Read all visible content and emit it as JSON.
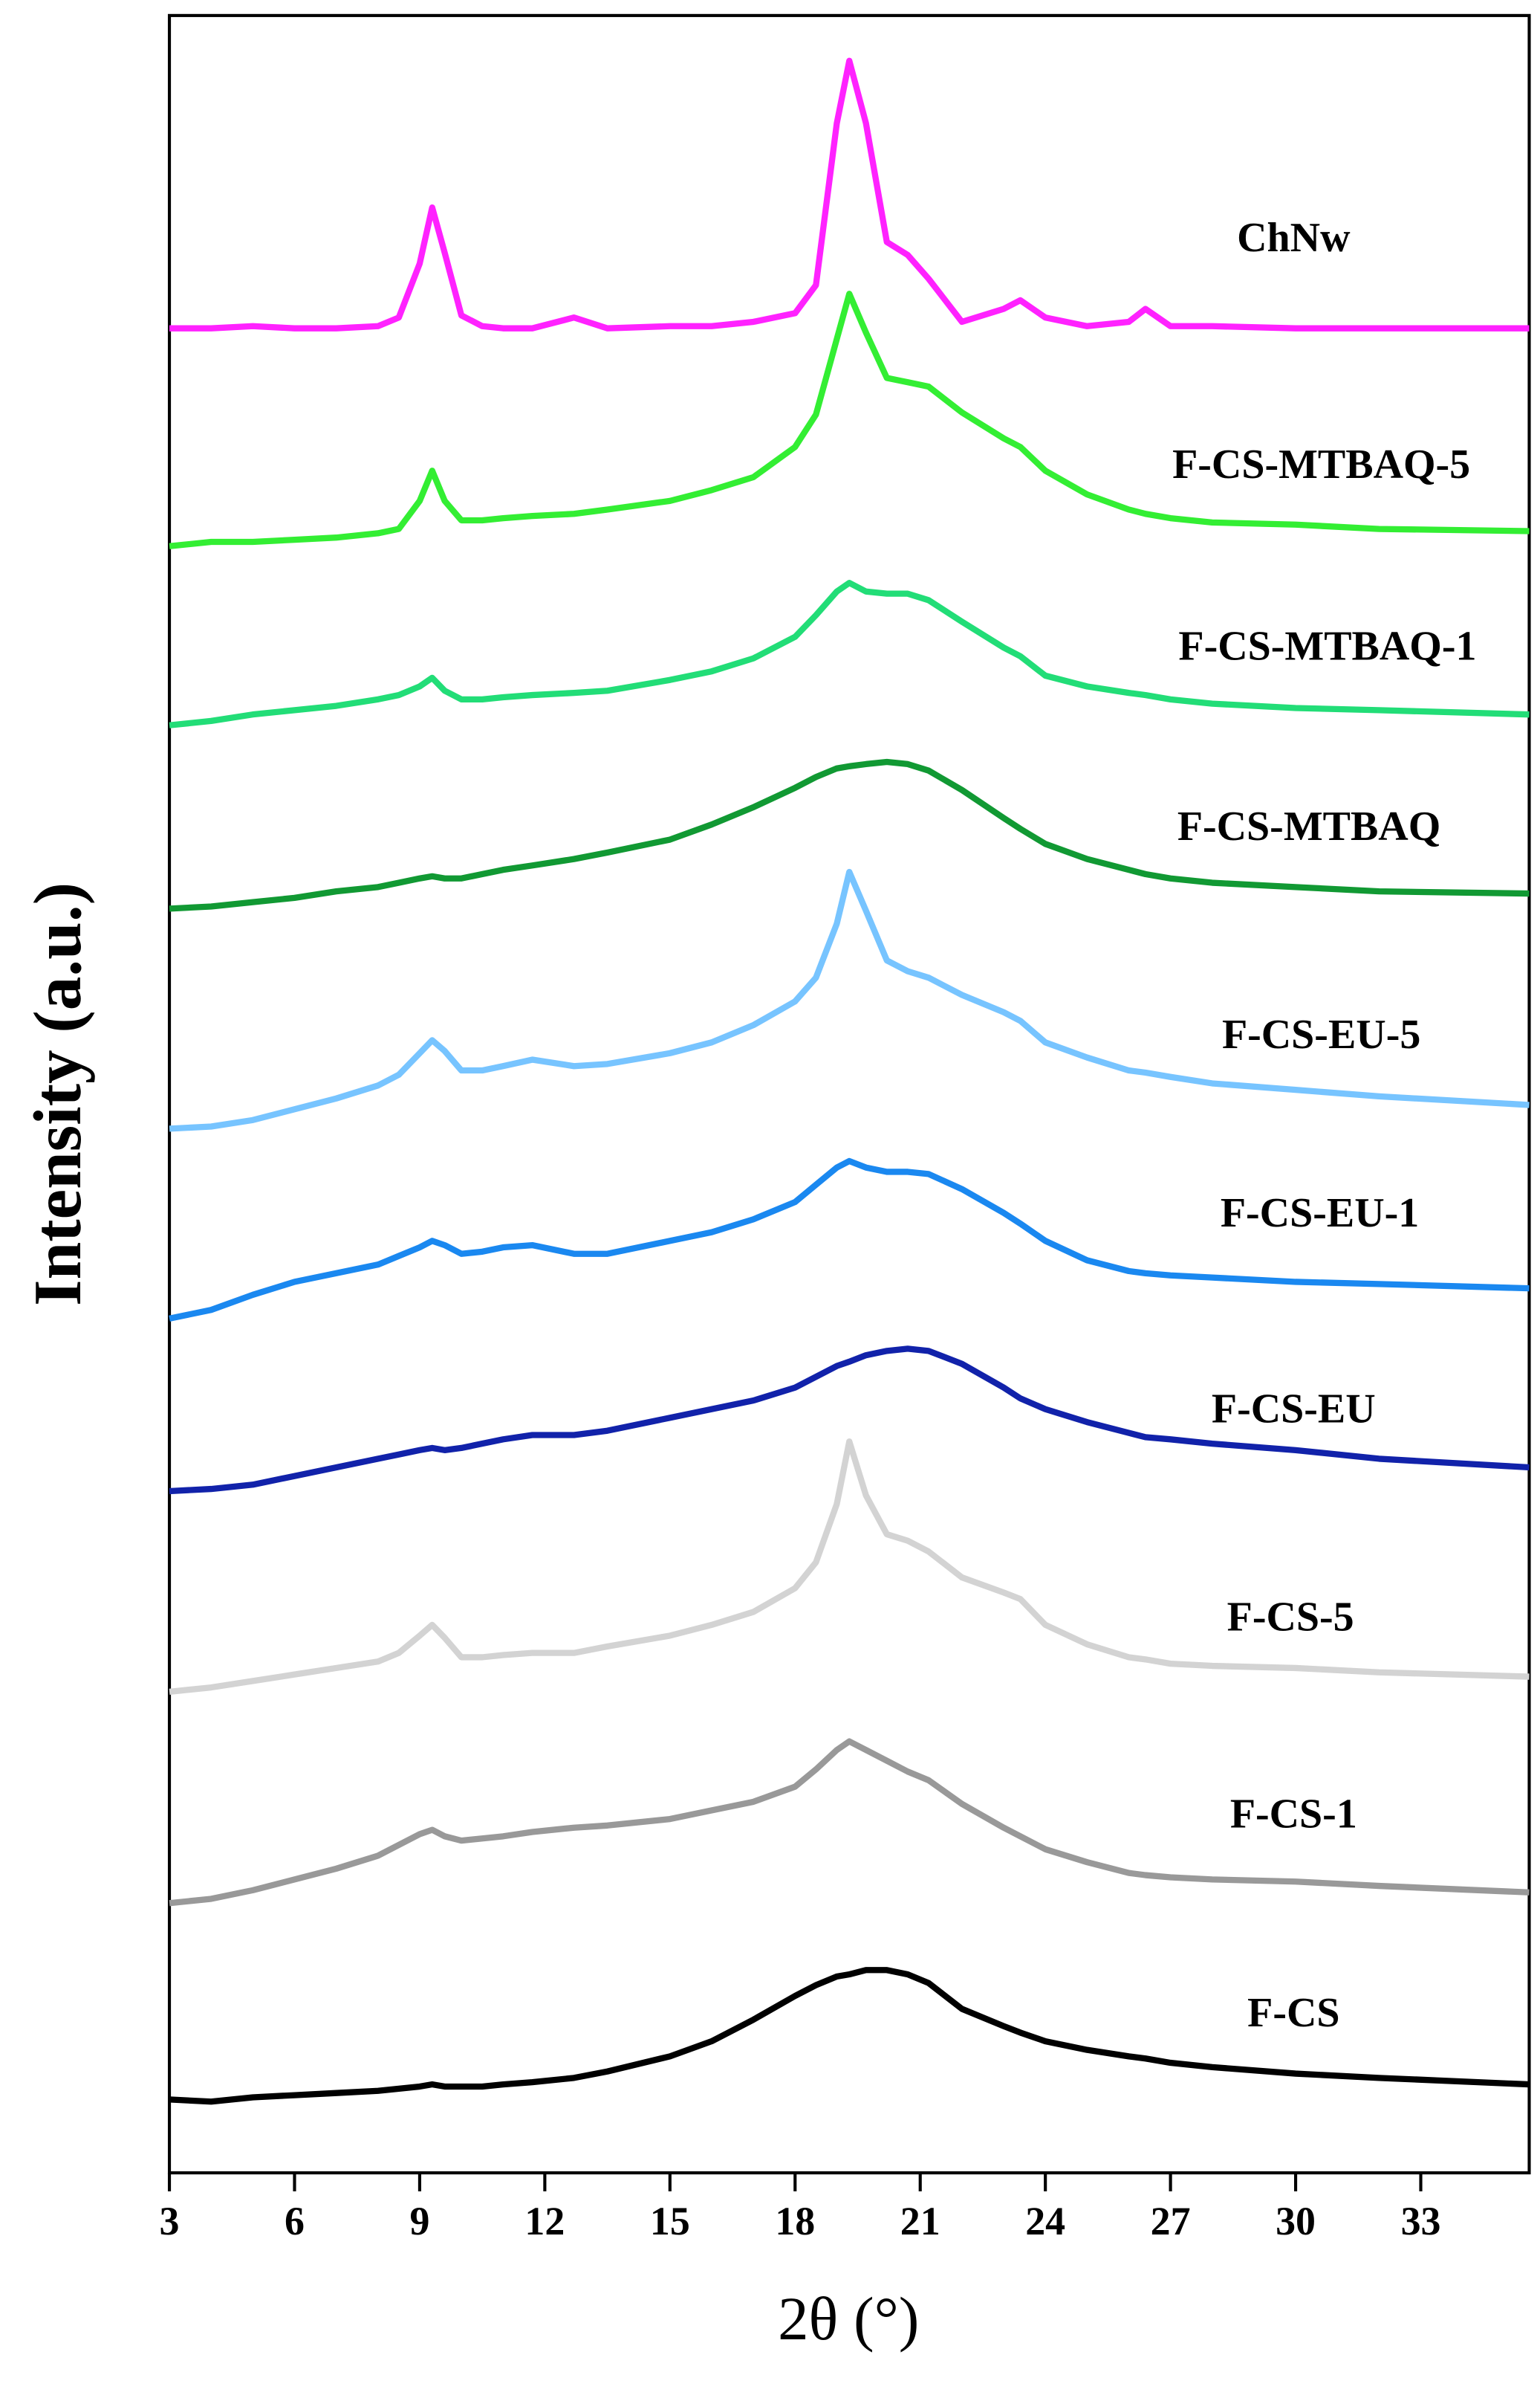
{
  "chart_data": {
    "type": "line",
    "x_label": "2θ (°)",
    "y_label": "Intensity (a.u.)",
    "xlim": [
      3,
      35.6
    ],
    "ylim": [
      0,
      100
    ],
    "xticks": [
      3,
      6,
      9,
      12,
      15,
      18,
      21,
      24,
      27,
      30,
      33
    ],
    "x": [
      3,
      4,
      5,
      6,
      7,
      8,
      8.5,
      9,
      9.3,
      9.6,
      10,
      10.5,
      11,
      11.7,
      12.7,
      13.5,
      15,
      16,
      17,
      18,
      18.5,
      19,
      19.3,
      19.7,
      20.2,
      20.7,
      21.2,
      22,
      23,
      23.4,
      24,
      25,
      26,
      26.4,
      27,
      28,
      30,
      32,
      35.6
    ],
    "series": [
      {
        "name": "ChNw",
        "color": "#ff22ff",
        "values": [
          85.5,
          85.5,
          85.6,
          85.5,
          85.5,
          85.6,
          86.0,
          88.5,
          91.1,
          89,
          86.1,
          85.6,
          85.5,
          85.5,
          86.0,
          85.5,
          85.6,
          85.6,
          85.8,
          86.2,
          87.5,
          95,
          97.9,
          95,
          89.5,
          88.9,
          87.8,
          85.8,
          86.4,
          86.8,
          86,
          85.6,
          85.8,
          86.4,
          85.6,
          85.6,
          85.5,
          85.5,
          85.5
        ]
      },
      {
        "name": "F-CS-MTBAQ-5",
        "color": "#33ee33",
        "values": [
          75.4,
          75.6,
          75.6,
          75.7,
          75.8,
          76.0,
          76.2,
          77.5,
          78.9,
          77.5,
          76.6,
          76.6,
          76.7,
          76.8,
          76.9,
          77.1,
          77.5,
          78.0,
          78.6,
          80.0,
          81.5,
          85.0,
          87.1,
          85.3,
          83.2,
          83.0,
          82.8,
          81.6,
          80.4,
          80.0,
          78.9,
          77.8,
          77.1,
          76.9,
          76.7,
          76.5,
          76.4,
          76.2,
          76.1
        ]
      },
      {
        "name": "F-CS-MTBAQ-1",
        "color": "#22dd77",
        "values": [
          67.1,
          67.3,
          67.6,
          67.8,
          68.0,
          68.3,
          68.5,
          68.9,
          69.3,
          68.7,
          68.3,
          68.3,
          68.4,
          68.5,
          68.6,
          68.7,
          69.2,
          69.6,
          70.2,
          71.2,
          72.2,
          73.3,
          73.7,
          73.3,
          73.2,
          73.2,
          72.9,
          71.9,
          70.7,
          70.3,
          69.4,
          68.9,
          68.6,
          68.5,
          68.3,
          68.1,
          67.9,
          67.8,
          67.6
        ]
      },
      {
        "name": "F-CS-MTBAQ",
        "color": "#119933",
        "values": [
          58.6,
          58.7,
          58.9,
          59.1,
          59.4,
          59.6,
          59.8,
          60.0,
          60.1,
          60.0,
          60.0,
          60.2,
          60.4,
          60.6,
          60.9,
          61.2,
          61.8,
          62.5,
          63.3,
          64.2,
          64.7,
          65.1,
          65.2,
          65.3,
          65.4,
          65.3,
          65.0,
          64.1,
          62.8,
          62.3,
          61.6,
          60.9,
          60.4,
          60.2,
          60.0,
          59.8,
          59.6,
          59.4,
          59.3
        ]
      },
      {
        "name": "F-CS-EU-5",
        "color": "#77c4ff",
        "values": [
          48.4,
          48.5,
          48.8,
          49.3,
          49.8,
          50.4,
          50.9,
          51.9,
          52.5,
          52.0,
          51.1,
          51.1,
          51.3,
          51.6,
          51.3,
          51.4,
          51.9,
          52.4,
          53.2,
          54.3,
          55.4,
          57.9,
          60.3,
          58.5,
          56.2,
          55.7,
          55.4,
          54.6,
          53.8,
          53.4,
          52.4,
          51.7,
          51.1,
          51.0,
          50.8,
          50.5,
          50.2,
          49.9,
          49.5
        ]
      },
      {
        "name": "F-CS-EU-1",
        "color": "#1a88f0",
        "values": [
          39.6,
          40.0,
          40.7,
          41.3,
          41.7,
          42.1,
          42.5,
          42.9,
          43.2,
          43.0,
          42.6,
          42.7,
          42.9,
          43.0,
          42.6,
          42.6,
          43.2,
          43.6,
          44.2,
          45.0,
          45.8,
          46.6,
          46.9,
          46.6,
          46.4,
          46.4,
          46.3,
          45.6,
          44.5,
          44.0,
          43.2,
          42.3,
          41.8,
          41.7,
          41.6,
          41.5,
          41.3,
          41.2,
          41.0
        ]
      },
      {
        "name": "F-CS-EU",
        "color": "#1122aa",
        "values": [
          31.6,
          31.7,
          31.9,
          32.3,
          32.7,
          33.1,
          33.3,
          33.5,
          33.6,
          33.5,
          33.6,
          33.8,
          34.0,
          34.2,
          34.2,
          34.4,
          35.0,
          35.4,
          35.8,
          36.4,
          36.9,
          37.4,
          37.6,
          37.9,
          38.1,
          38.2,
          38.1,
          37.5,
          36.4,
          35.9,
          35.4,
          34.8,
          34.3,
          34.1,
          34.0,
          33.8,
          33.5,
          33.1,
          32.7
        ]
      },
      {
        "name": "F-CS-5",
        "color": "#d3d3d3",
        "values": [
          22.3,
          22.5,
          22.8,
          23.1,
          23.4,
          23.7,
          24.1,
          24.9,
          25.4,
          24.8,
          23.9,
          23.9,
          24.0,
          24.1,
          24.1,
          24.4,
          24.9,
          25.4,
          26.0,
          27.1,
          28.3,
          31.0,
          33.9,
          31.4,
          29.6,
          29.3,
          28.8,
          27.6,
          26.9,
          26.6,
          25.4,
          24.5,
          23.9,
          23.8,
          23.6,
          23.5,
          23.4,
          23.2,
          23.0
        ]
      },
      {
        "name": "F-CS-1",
        "color": "#999999",
        "values": [
          12.5,
          12.7,
          13.1,
          13.6,
          14.1,
          14.7,
          15.2,
          15.7,
          15.9,
          15.6,
          15.4,
          15.5,
          15.6,
          15.8,
          16.0,
          16.1,
          16.4,
          16.8,
          17.2,
          17.9,
          18.7,
          19.6,
          20.0,
          19.6,
          19.1,
          18.6,
          18.2,
          17.1,
          16.0,
          15.6,
          15.0,
          14.4,
          13.9,
          13.8,
          13.7,
          13.6,
          13.5,
          13.3,
          13.0
        ]
      },
      {
        "name": "F-CS",
        "color": "#000000",
        "values": [
          3.4,
          3.3,
          3.5,
          3.6,
          3.7,
          3.8,
          3.9,
          4.0,
          4.1,
          4.0,
          4.0,
          4.0,
          4.1,
          4.2,
          4.4,
          4.7,
          5.4,
          6.1,
          7.1,
          8.2,
          8.7,
          9.1,
          9.2,
          9.4,
          9.4,
          9.2,
          8.8,
          7.6,
          6.8,
          6.5,
          6.1,
          5.7,
          5.4,
          5.3,
          5.1,
          4.9,
          4.6,
          4.4,
          4.1
        ]
      }
    ]
  }
}
